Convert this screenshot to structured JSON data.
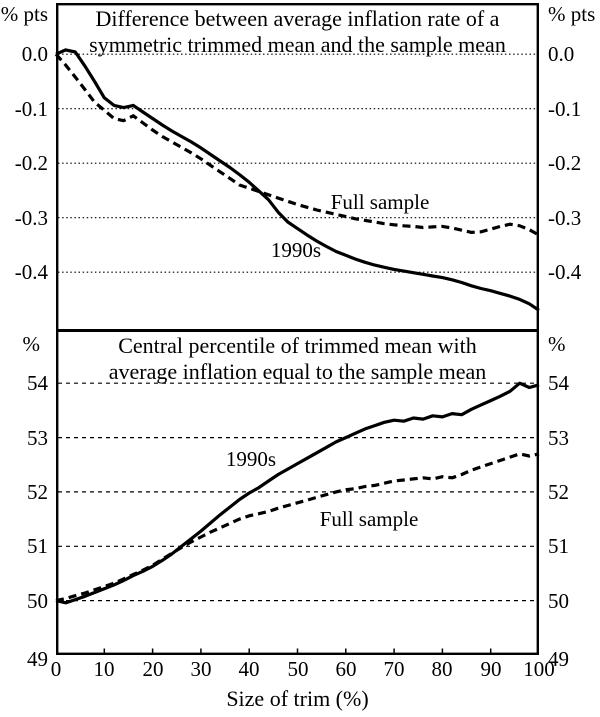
{
  "chart_data": [
    {
      "type": "line",
      "panel": "top",
      "title": "Difference between average inflation rate of a symmetric trimmed mean and the sample mean",
      "title_lines": [
        "Difference between average inflation rate of a",
        "symmetric trimmed mean and the sample mean"
      ],
      "unit": "% pts",
      "ylim": [
        -0.508,
        0.094
      ],
      "grid": "dotted",
      "yticks": [
        {
          "label": "0.0",
          "value": 0.0,
          "gridline": true
        },
        {
          "label": "-0.1",
          "value": -0.1,
          "gridline": true
        },
        {
          "label": "-0.2",
          "value": -0.2,
          "gridline": true
        },
        {
          "label": "-0.3",
          "value": -0.3,
          "gridline": true
        },
        {
          "label": "-0.4",
          "value": -0.4,
          "gridline": true
        }
      ],
      "x": [
        0,
        2,
        4,
        6,
        8,
        10,
        12,
        14,
        16,
        18,
        20,
        22,
        24,
        26,
        28,
        30,
        32,
        34,
        36,
        38,
        40,
        42,
        44,
        46,
        48,
        50,
        52,
        54,
        56,
        58,
        60,
        62,
        64,
        66,
        68,
        70,
        72,
        74,
        76,
        78,
        80,
        82,
        84,
        86,
        88,
        90,
        92,
        94,
        96,
        98,
        100
      ],
      "series": [
        {
          "name": "1990s",
          "style": "solid",
          "values": [
            0.0,
            0.008,
            0.004,
            -0.022,
            -0.05,
            -0.08,
            -0.094,
            -0.098,
            -0.094,
            -0.106,
            -0.118,
            -0.13,
            -0.141,
            -0.151,
            -0.161,
            -0.172,
            -0.184,
            -0.196,
            -0.208,
            -0.221,
            -0.235,
            -0.251,
            -0.267,
            -0.29,
            -0.308,
            -0.32,
            -0.332,
            -0.343,
            -0.353,
            -0.362,
            -0.369,
            -0.376,
            -0.382,
            -0.387,
            -0.391,
            -0.395,
            -0.398,
            -0.401,
            -0.404,
            -0.407,
            -0.41,
            -0.414,
            -0.419,
            -0.425,
            -0.43,
            -0.434,
            -0.439,
            -0.444,
            -0.45,
            -0.458,
            -0.47
          ]
        },
        {
          "name": "Full sample",
          "style": "dashed",
          "values": [
            0.0,
            -0.02,
            -0.042,
            -0.065,
            -0.088,
            -0.103,
            -0.118,
            -0.122,
            -0.113,
            -0.126,
            -0.139,
            -0.151,
            -0.161,
            -0.171,
            -0.181,
            -0.192,
            -0.204,
            -0.216,
            -0.228,
            -0.24,
            -0.246,
            -0.252,
            -0.258,
            -0.264,
            -0.27,
            -0.276,
            -0.281,
            -0.286,
            -0.29,
            -0.294,
            -0.298,
            -0.302,
            -0.305,
            -0.308,
            -0.311,
            -0.313,
            -0.315,
            -0.316,
            -0.318,
            -0.317,
            -0.316,
            -0.319,
            -0.323,
            -0.327,
            -0.326,
            -0.321,
            -0.316,
            -0.312,
            -0.315,
            -0.322,
            -0.332
          ]
        }
      ],
      "annotations": [
        {
          "text": "Full sample",
          "x": 67,
          "y": -0.272
        },
        {
          "text": "1990s",
          "x": 49.7,
          "y": -0.36
        }
      ]
    },
    {
      "type": "line",
      "panel": "bottom",
      "title": "Central percentile of trimmed mean with average inflation equal to the sample mean",
      "title_lines": [
        "Central percentile of trimmed mean with",
        "average inflation equal to the sample mean"
      ],
      "unit": "%",
      "xlabel": "Size of trim (%)",
      "ylim": [
        49,
        54.96
      ],
      "grid": "dashed",
      "yticks": [
        {
          "label": "54",
          "value": 54,
          "gridline": true
        },
        {
          "label": "53",
          "value": 53,
          "gridline": true
        },
        {
          "label": "52",
          "value": 52,
          "gridline": true
        },
        {
          "label": "51",
          "value": 51,
          "gridline": true
        },
        {
          "label": "50",
          "value": 50,
          "gridline": true
        },
        {
          "label": "49",
          "value": 49,
          "gridline": false
        }
      ],
      "xticks": [
        {
          "label": "0",
          "value": 0,
          "tick": false
        },
        {
          "label": "10",
          "value": 10,
          "tick": true
        },
        {
          "label": "20",
          "value": 20,
          "tick": true
        },
        {
          "label": "30",
          "value": 30,
          "tick": true
        },
        {
          "label": "40",
          "value": 40,
          "tick": true
        },
        {
          "label": "50",
          "value": 50,
          "tick": true
        },
        {
          "label": "60",
          "value": 60,
          "tick": true
        },
        {
          "label": "70",
          "value": 70,
          "tick": true
        },
        {
          "label": "80",
          "value": 80,
          "tick": true
        },
        {
          "label": "90",
          "value": 90,
          "tick": true
        },
        {
          "label": "100",
          "value": 100,
          "tick": false
        }
      ],
      "x": [
        0,
        2,
        4,
        6,
        8,
        10,
        12,
        14,
        16,
        18,
        20,
        22,
        24,
        26,
        28,
        30,
        32,
        34,
        36,
        38,
        40,
        42,
        44,
        46,
        48,
        50,
        52,
        54,
        56,
        58,
        60,
        62,
        64,
        66,
        68,
        70,
        72,
        74,
        76,
        78,
        80,
        82,
        84,
        86,
        88,
        90,
        92,
        94,
        96,
        98,
        100
      ],
      "series": [
        {
          "name": "1990s",
          "style": "solid",
          "values": [
            50.0,
            49.96,
            50.02,
            50.08,
            50.15,
            50.22,
            50.29,
            50.37,
            50.46,
            50.54,
            50.63,
            50.74,
            50.86,
            51.0,
            51.14,
            51.28,
            51.43,
            51.58,
            51.72,
            51.86,
            51.98,
            52.08,
            52.2,
            52.32,
            52.42,
            52.52,
            52.62,
            52.72,
            52.82,
            52.92,
            53.0,
            53.08,
            53.16,
            53.22,
            53.28,
            53.32,
            53.3,
            53.36,
            53.34,
            53.4,
            53.38,
            53.44,
            53.42,
            53.52,
            53.6,
            53.68,
            53.76,
            53.85,
            54.0,
            53.92,
            53.97
          ]
        },
        {
          "name": "Full sample",
          "style": "dashed",
          "values": [
            50.0,
            50.04,
            50.09,
            50.14,
            50.2,
            50.26,
            50.32,
            50.4,
            50.48,
            50.56,
            50.65,
            50.76,
            50.87,
            50.98,
            51.08,
            51.17,
            51.26,
            51.34,
            51.42,
            51.5,
            51.56,
            51.6,
            51.64,
            51.7,
            51.75,
            51.8,
            51.85,
            51.9,
            51.95,
            52.0,
            52.04,
            52.06,
            52.1,
            52.12,
            52.16,
            52.2,
            52.22,
            52.24,
            52.26,
            52.24,
            52.28,
            52.26,
            52.32,
            52.4,
            52.46,
            52.52,
            52.58,
            52.64,
            52.7,
            52.66,
            52.7
          ]
        }
      ],
      "annotations": [
        {
          "text": "1990s",
          "x": 40.4,
          "y": 52.6
        },
        {
          "text": "Full sample",
          "x": 64.8,
          "y": 51.5
        }
      ]
    }
  ]
}
